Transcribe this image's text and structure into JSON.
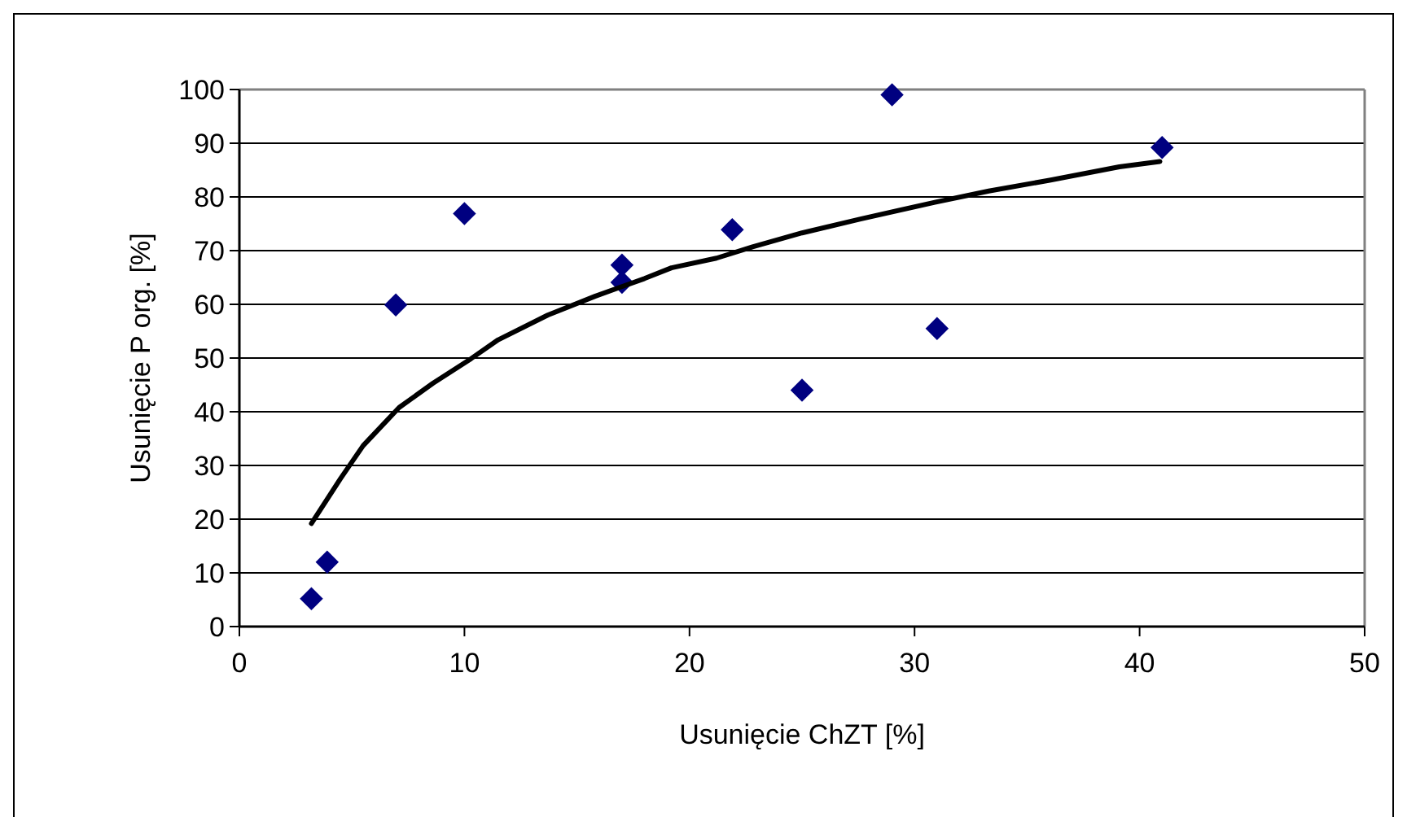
{
  "chart_data": {
    "type": "scatter",
    "xlabel": "Usunięcie ChZT [%]",
    "ylabel": "Usunięcie P org. [%]",
    "xlim": [
      0,
      50
    ],
    "xticks": [
      0,
      10,
      20,
      30,
      40,
      50
    ],
    "ylim": [
      0,
      100
    ],
    "yticks": [
      0,
      10,
      20,
      30,
      40,
      50,
      60,
      70,
      80,
      90,
      100
    ],
    "grid": "y",
    "series": [
      {
        "type": "scatter",
        "color": "#000080",
        "marker": "diamond",
        "x": [
          3.2,
          3.9,
          6.95,
          10,
          17,
          17,
          21.9,
          25,
          29,
          31,
          41
        ],
        "values": [
          5.2,
          12,
          59.9,
          76.9,
          67.3,
          64.1,
          73.9,
          44,
          99,
          55.5,
          89.2
        ]
      },
      {
        "type": "line",
        "color": "#000000",
        "marker": "none",
        "line_style": "solid",
        "x": [
          3.2,
          4.5,
          5.5,
          7.1,
          8.6,
          10.3,
          11.5,
          13.7,
          15.8,
          18,
          19.2,
          21.2,
          22.8,
          25,
          27.6,
          30.9,
          33.3,
          36,
          39.1,
          40.9
        ],
        "values": [
          19.2,
          27.6,
          33.7,
          40.8,
          45.3,
          49.9,
          53.4,
          58,
          61.5,
          64.8,
          66.8,
          68.6,
          70.7,
          73.3,
          75.9,
          79,
          81.1,
          83.1,
          85.6,
          86.6
        ]
      }
    ]
  }
}
